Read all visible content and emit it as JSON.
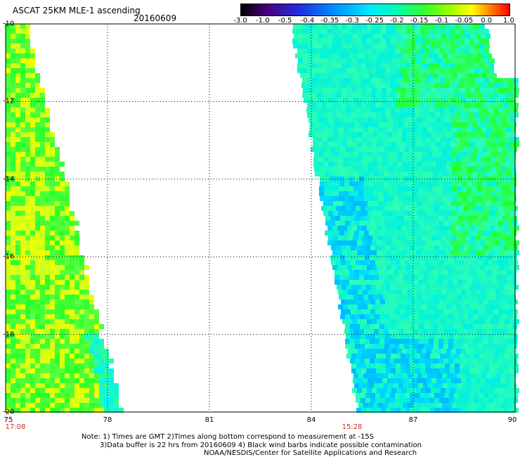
{
  "header": {
    "title": "ASCAT 25KM MLE-1 ascending",
    "date": "20160609"
  },
  "colorbar": {
    "labels": [
      "-3.0",
      "-1.0",
      "-0.5",
      "-0.4",
      "-0.35",
      "-0.3",
      "-0.25",
      "-0.2",
      "-0.15",
      "-0.1",
      "-0.05",
      "0.0",
      "1.0"
    ],
    "colors": [
      "#000000",
      "#5a0078",
      "#2020e0",
      "#0090ff",
      "#00e0ff",
      "#00ff90",
      "#30e000",
      "#c0ff00",
      "#ffe000",
      "#ff5000",
      "#ff0000"
    ]
  },
  "axes": {
    "lat_labels": [
      "-10",
      "-12",
      "-14",
      "-16",
      "-18",
      "-20"
    ],
    "lat_values": [
      -10,
      -12,
      -14,
      -16,
      -18,
      -20
    ],
    "lon_labels": [
      "75",
      "78",
      "81",
      "84",
      "87",
      "90"
    ],
    "lon_values": [
      75,
      78,
      81,
      84,
      87,
      90
    ],
    "lon_range": [
      75,
      90
    ],
    "lat_range": [
      -10,
      -20
    ]
  },
  "swaths": [
    {
      "time": "17:08",
      "time_lon": 75
    },
    {
      "time": "15:28",
      "time_lon": 85.2
    }
  ],
  "notes": [
    "Note: 1) Times are GMT 2)Times along bottom correspond to measurement at -15S",
    "3)Data buffer is 22 hrs from 20160609 4) Black wind barbs indicate possible contamination",
    "NOAA/NESDIS/Center for Satellite Applications and Research"
  ]
}
